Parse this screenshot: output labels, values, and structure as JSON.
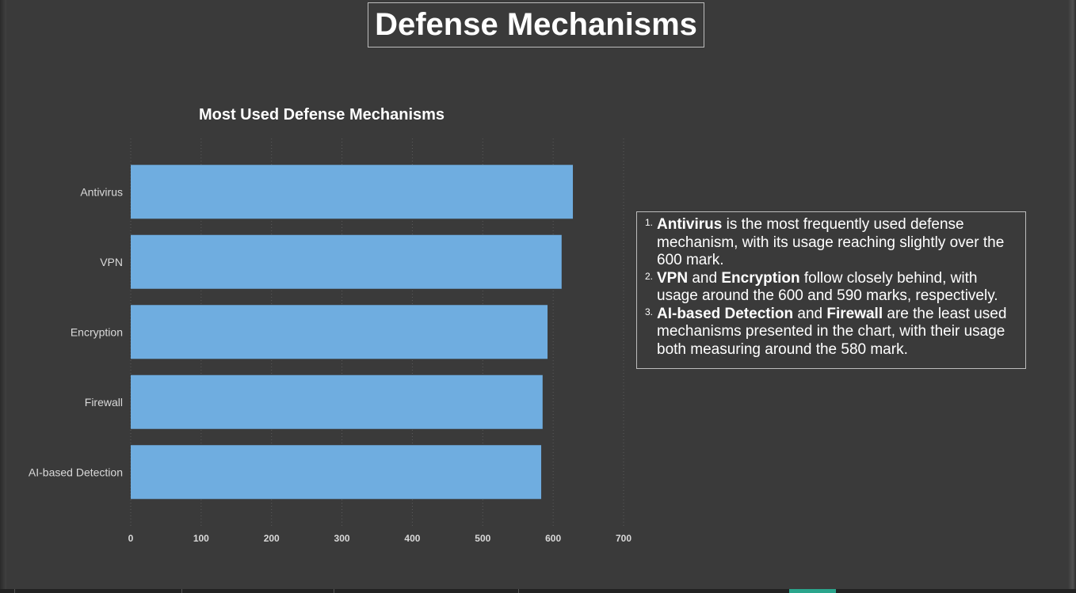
{
  "page": {
    "title": "Defense Mechanisms"
  },
  "chart_data": {
    "type": "bar",
    "orientation": "horizontal",
    "title": "Most Used Defense Mechanisms",
    "categories": [
      "Antivirus",
      "VPN",
      "Encryption",
      "Firewall",
      "AI-based Detection"
    ],
    "values": [
      628,
      612,
      592,
      585,
      583
    ],
    "xlim": [
      0,
      700
    ],
    "xticks": [
      0,
      100,
      200,
      300,
      400,
      500,
      600,
      700
    ],
    "xlabel": "",
    "ylabel": "",
    "grid": "vertical dotted",
    "colors": {
      "bar": "#6fade0",
      "text": "#d9d9d9",
      "grid": "#5a5a5a"
    }
  },
  "notes": [
    {
      "num": "1.",
      "parts": [
        {
          "text": "Antivirus",
          "bold": true
        },
        {
          "text": " is the most frequently used defense mechanism, with its usage reaching slightly over the 600 mark.",
          "bold": false
        }
      ]
    },
    {
      "num": "2.",
      "parts": [
        {
          "text": "VPN",
          "bold": true
        },
        {
          "text": " and ",
          "bold": false
        },
        {
          "text": "Encryption",
          "bold": true
        },
        {
          "text": "  follow closely behind, with usage around the 600 and 590 marks, respectively.",
          "bold": false
        }
      ]
    },
    {
      "num": "3.",
      "parts": [
        {
          "text": "AI-based Detection",
          "bold": true
        },
        {
          "text": " and ",
          "bold": false
        },
        {
          "text": "Firewall",
          "bold": true
        },
        {
          "text": " are the least used mechanisms presented in the chart, with their usage both measuring around the 580 mark.",
          "bold": false
        }
      ]
    }
  ]
}
